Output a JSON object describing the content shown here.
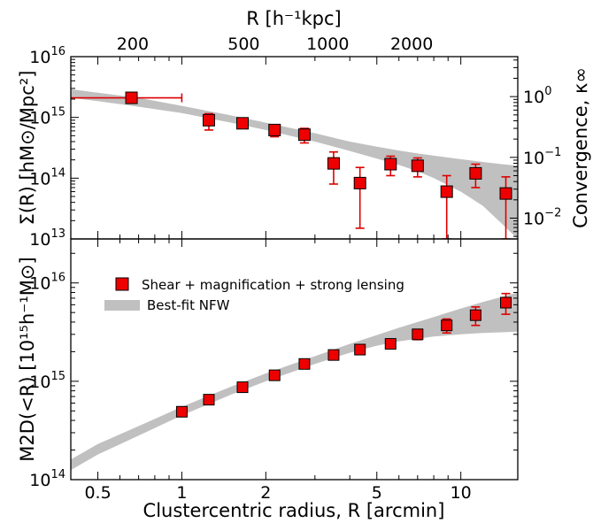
{
  "chart_data": {
    "type": "scatter",
    "shared_x": {
      "label": "Clustercentric radius, R [arcmin]",
      "scale": "log",
      "xlim": [
        0.4,
        16
      ],
      "ticks": [
        0.5,
        1,
        2,
        5,
        10
      ],
      "tick_labels": [
        "0.5",
        "1",
        "2",
        "5",
        "10"
      ]
    },
    "top_axis": {
      "label": "R [h⁻¹kpc]",
      "ticks_kpc": [
        200,
        500,
        1000,
        2000
      ],
      "tick_labels": [
        "200",
        "500",
        "1000",
        "2000"
      ],
      "kpc_per_arcmin": 300
    },
    "legend": {
      "placement": "top-left of lower panel",
      "entries": [
        "Shear + magnification + strong lensing",
        "Best-fit NFW"
      ]
    },
    "panels": [
      {
        "name": "surface-density",
        "ylabel": "Σ(R) [hM⊙/Mpc²]",
        "scale": "log",
        "ylim": [
          10000000000000.0,
          1e+16
        ],
        "y_tick_labels": [
          {
            "value": 10000000000000.0,
            "mant": "10",
            "exp": "13"
          },
          {
            "value": 100000000000000.0,
            "mant": "10",
            "exp": "14"
          },
          {
            "value": 1000000000000000.0,
            "mant": "10",
            "exp": "15"
          },
          {
            "value": 1e+16,
            "mant": "10",
            "exp": "16"
          }
        ],
        "right_axis": {
          "label": "Convergence, κ∞",
          "sigma_crit": 2200000000000000.0,
          "tick_labels": [
            {
              "value": 1,
              "text": "10",
              "exp": "0"
            },
            {
              "value": 0.1,
              "text": "10",
              "exp": "−1"
            },
            {
              "value": 0.01,
              "text": "10",
              "exp": "−2"
            }
          ]
        },
        "band": {
          "x": [
            0.4,
            0.5,
            0.7,
            1.0,
            1.5,
            2.0,
            3.0,
            4.0,
            5.0,
            6.0,
            7.0,
            8.0,
            10.0,
            12.0,
            14.0,
            16.0
          ],
          "upper": [
            2900000000000000.0,
            2550000000000000.0,
            2100000000000000.0,
            1550000000000000.0,
            1080000000000000.0,
            820000000000000.0,
            550000000000000.0,
            400000000000000.0,
            330000000000000.0,
            285000000000000.0,
            255000000000000.0,
            235000000000000.0,
            205000000000000.0,
            185000000000000.0,
            170000000000000.0,
            160000000000000.0
          ],
          "lower": [
            2100000000000000.0,
            1850000000000000.0,
            1500000000000000.0,
            1180000000000000.0,
            820000000000000.0,
            620000000000000.0,
            400000000000000.0,
            280000000000000.0,
            210000000000000.0,
            165000000000000.0,
            130000000000000.0,
            100000000000000.0,
            60000000000000.0,
            35000000000000.0,
            18000000000000.0,
            10000000000000.0
          ]
        },
        "points": [
          {
            "x": 0.66,
            "y": 2100000000000000.0,
            "ylo": 2100000000000000.0,
            "yhi": 2100000000000000.0,
            "xlo": 0.4,
            "xhi": 1.0
          },
          {
            "x": 1.25,
            "y": 900000000000000.0,
            "ylo": 620000000000000.0,
            "yhi": 1150000000000000.0
          },
          {
            "x": 1.65,
            "y": 800000000000000.0,
            "ylo": 660000000000000.0,
            "yhi": 940000000000000.0
          },
          {
            "x": 2.15,
            "y": 620000000000000.0,
            "ylo": 480000000000000.0,
            "yhi": 760000000000000.0
          },
          {
            "x": 2.75,
            "y": 520000000000000.0,
            "ylo": 380000000000000.0,
            "yhi": 660000000000000.0
          },
          {
            "x": 3.5,
            "y": 175000000000000.0,
            "ylo": 80000000000000.0,
            "yhi": 270000000000000.0
          },
          {
            "x": 4.35,
            "y": 83000000000000.0,
            "ylo": 15000000000000.0,
            "yhi": 150000000000000.0
          },
          {
            "x": 5.6,
            "y": 170000000000000.0,
            "ylo": 110000000000000.0,
            "yhi": 230000000000000.0
          },
          {
            "x": 7.0,
            "y": 160000000000000.0,
            "ylo": 105000000000000.0,
            "yhi": 215000000000000.0
          },
          {
            "x": 8.9,
            "y": 60000000000000.0,
            "ylo": 10000000000000.0,
            "yhi": 110000000000000.0
          },
          {
            "x": 11.3,
            "y": 120000000000000.0,
            "ylo": 70000000000000.0,
            "yhi": 170000000000000.0
          },
          {
            "x": 14.5,
            "y": 56000000000000.0,
            "ylo": 10000000000000.0,
            "yhi": 105000000000000.0
          }
        ]
      },
      {
        "name": "projected-mass",
        "ylabel": "M2D(<R) [10¹⁵h⁻¹M⊙]",
        "scale": "log",
        "ylim": [
          100000000000000.0,
          2.8e+16
        ],
        "y_tick_labels": [
          {
            "value": 100000000000000.0,
            "mant": "10",
            "exp": "14"
          },
          {
            "value": 1000000000000000.0,
            "mant": "10",
            "exp": "15"
          },
          {
            "value": 1e+16,
            "mant": "10",
            "exp": "16"
          }
        ],
        "band": {
          "x": [
            0.4,
            0.5,
            0.7,
            1.0,
            1.5,
            2.0,
            3.0,
            4.0,
            5.0,
            6.0,
            8.0,
            10.0,
            12.0,
            14.0,
            16.0
          ],
          "upper": [
            160000000000000.0,
            230000000000000.0,
            350000000000000.0,
            550000000000000.0,
            880000000000000.0,
            1200000000000000.0,
            1800000000000000.0,
            2400000000000000.0,
            2950000000000000.0,
            3500000000000000.0,
            4500000000000000.0,
            5500000000000000.0,
            6400000000000000.0,
            7200000000000000.0,
            8000000000000000.0
          ],
          "lower": [
            125000000000000.0,
            180000000000000.0,
            280000000000000.0,
            450000000000000.0,
            730000000000000.0,
            1000000000000000.0,
            1500000000000000.0,
            1950000000000000.0,
            2300000000000000.0,
            2550000000000000.0,
            2850000000000000.0,
            3000000000000000.0,
            3100000000000000.0,
            3150000000000000.0,
            3200000000000000.0
          ]
        },
        "points": [
          {
            "x": 1.0,
            "y": 490000000000000.0,
            "ylo": 450000000000000.0,
            "yhi": 530000000000000.0
          },
          {
            "x": 1.25,
            "y": 650000000000000.0,
            "ylo": 600000000000000.0,
            "yhi": 700000000000000.0
          },
          {
            "x": 1.65,
            "y": 870000000000000.0,
            "ylo": 810000000000000.0,
            "yhi": 930000000000000.0
          },
          {
            "x": 2.15,
            "y": 1150000000000000.0,
            "ylo": 1070000000000000.0,
            "yhi": 1230000000000000.0
          },
          {
            "x": 2.75,
            "y": 1500000000000000.0,
            "ylo": 1400000000000000.0,
            "yhi": 1600000000000000.0
          },
          {
            "x": 3.5,
            "y": 1850000000000000.0,
            "ylo": 1730000000000000.0,
            "yhi": 1970000000000000.0
          },
          {
            "x": 4.35,
            "y": 2100000000000000.0,
            "ylo": 1950000000000000.0,
            "yhi": 2250000000000000.0
          },
          {
            "x": 5.6,
            "y": 2400000000000000.0,
            "ylo": 2200000000000000.0,
            "yhi": 2600000000000000.0
          },
          {
            "x": 7.0,
            "y": 3000000000000000.0,
            "ylo": 2650000000000000.0,
            "yhi": 3350000000000000.0
          },
          {
            "x": 8.9,
            "y": 3700000000000000.0,
            "ylo": 3100000000000000.0,
            "yhi": 4300000000000000.0
          },
          {
            "x": 11.3,
            "y": 4700000000000000.0,
            "ylo": 3700000000000000.0,
            "yhi": 5700000000000000.0
          },
          {
            "x": 14.5,
            "y": 6300000000000000.0,
            "ylo": 4800000000000000.0,
            "yhi": 7800000000000000.0
          }
        ]
      }
    ],
    "colors": {
      "marker": "#ee0000",
      "marker_edge": "#000000",
      "errorbar": "#dd0000",
      "band": "#c0c0c0"
    }
  }
}
